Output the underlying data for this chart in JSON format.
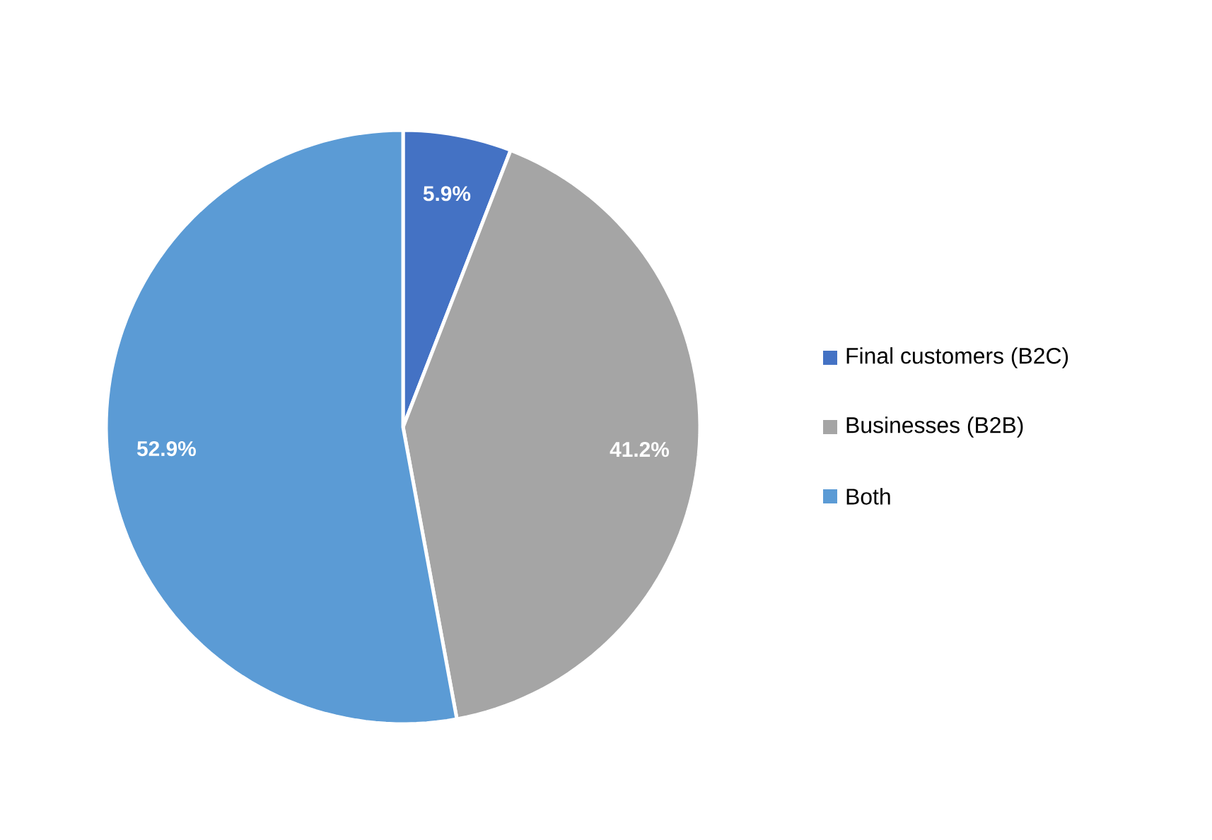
{
  "chart_data": {
    "type": "pie",
    "categories": [
      "Final customers (B2C)",
      "Businesses (B2B)",
      "Both"
    ],
    "values": [
      5.9,
      41.2,
      52.9
    ],
    "colors": [
      "#4472c4",
      "#a5a5a5",
      "#5b9bd5"
    ],
    "value_labels": [
      "5.9%",
      "41.2%",
      "52.9%"
    ],
    "legend": "right"
  }
}
